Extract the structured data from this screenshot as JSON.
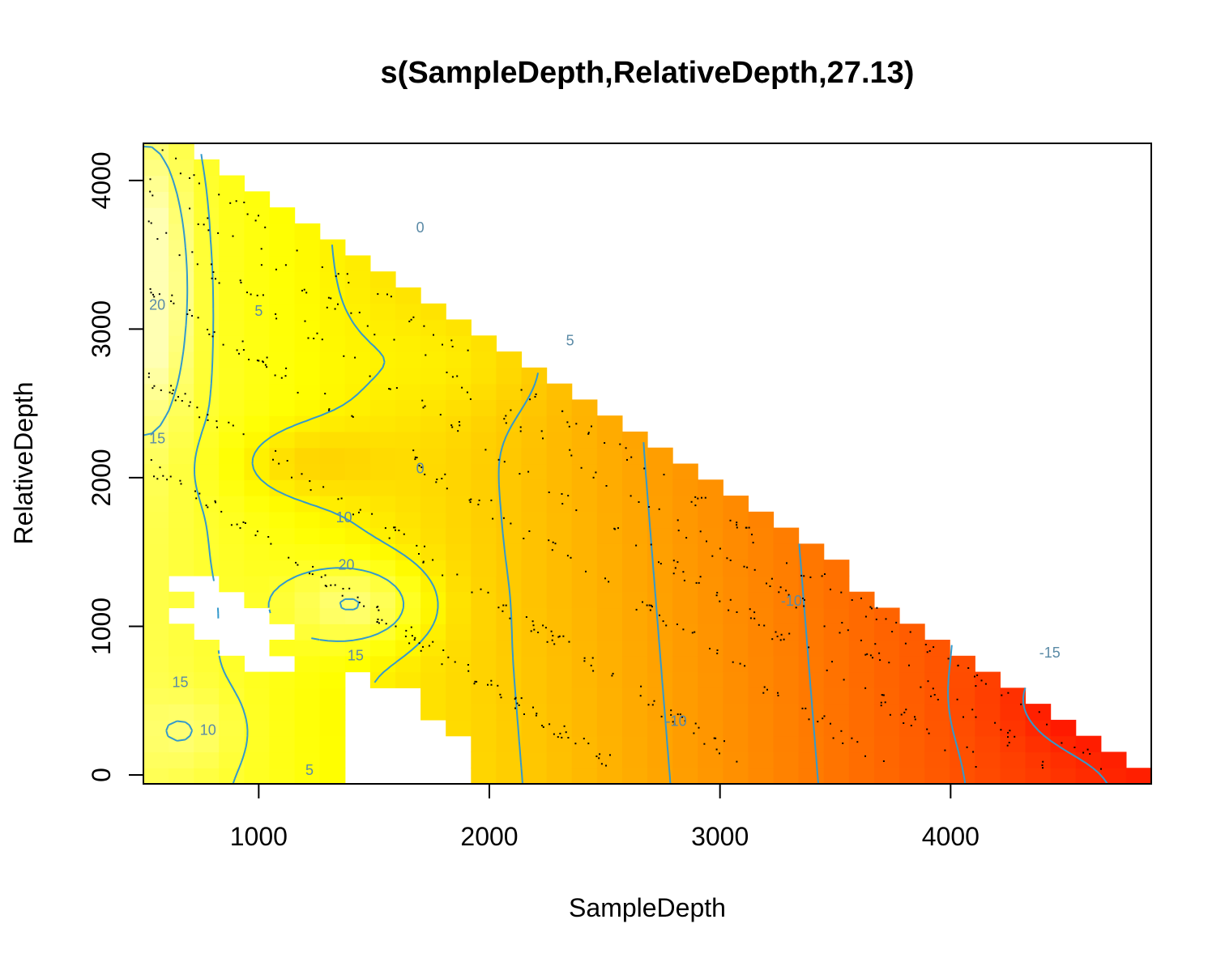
{
  "chart_data": {
    "type": "heatmap",
    "title": "s(SampleDepth,RelativeDepth,27.13)",
    "xlabel": "SampleDepth",
    "ylabel": "RelativeDepth",
    "xlim": [
      500,
      4870
    ],
    "ylim": [
      -60,
      4250
    ],
    "x_ticks": [
      1000,
      2000,
      3000,
      4000
    ],
    "y_ticks": [
      0,
      1000,
      2000,
      3000,
      4000
    ],
    "grid": false,
    "colormap": "heat (low = red, high = light yellow)",
    "colors": {
      "low": "#ff0000",
      "mid": "#ff9900",
      "high": "#ffff66",
      "contour": "#3399cc",
      "points": "#000000"
    },
    "contour_levels": [
      -15,
      -10,
      -5,
      0,
      5,
      10,
      15,
      20
    ],
    "contour_labels": [
      {
        "text": "20",
        "x": 560,
        "y": 3130
      },
      {
        "text": "15",
        "x": 560,
        "y": 2230
      },
      {
        "text": "5",
        "x": 1000,
        "y": 3090
      },
      {
        "text": "0",
        "x": 1700,
        "y": 3650
      },
      {
        "text": "5",
        "x": 2350,
        "y": 2890
      },
      {
        "text": "0",
        "x": 1700,
        "y": 2030
      },
      {
        "text": "10",
        "x": 1370,
        "y": 1700
      },
      {
        "text": "20",
        "x": 1380,
        "y": 1380
      },
      {
        "text": "15",
        "x": 1420,
        "y": 770
      },
      {
        "text": "15",
        "x": 660,
        "y": 590
      },
      {
        "text": "10",
        "x": 780,
        "y": 270
      },
      {
        "text": "5",
        "x": 1220,
        "y": 0
      },
      {
        "text": "-10",
        "x": 3310,
        "y": 1140
      },
      {
        "text": "-10",
        "x": 2810,
        "y": 330
      },
      {
        "text": "-15",
        "x": 4430,
        "y": 790
      }
    ]
  }
}
